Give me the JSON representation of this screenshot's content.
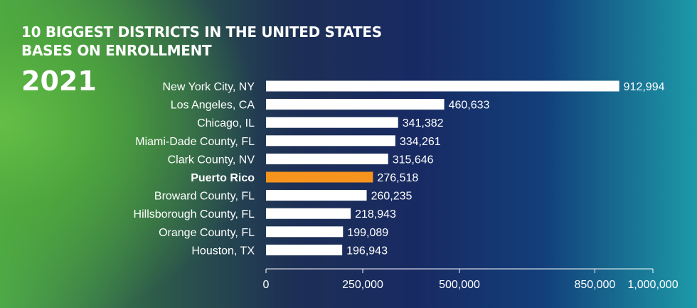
{
  "title_line1": "10 BIGGEST DISTRICTS IN THE UNITED STATES",
  "title_line2": "BASES ON ENROLLMENT",
  "year": "2021",
  "colors": {
    "bar": "#ffffff",
    "highlight": "#f7941d",
    "axis": "#ffffff"
  },
  "chart_data": {
    "type": "bar",
    "orientation": "horizontal",
    "categories": [
      "New York City, NY",
      "Los Angeles, CA",
      "Chicago, IL",
      "Miami-Dade County, FL",
      "Clark County, NV",
      "Puerto Rico",
      "Broward County, FL",
      "Hillsborough County, FL",
      "Orange County, FL",
      "Houston, TX"
    ],
    "values": [
      912994,
      460633,
      341382,
      334261,
      315646,
      276518,
      260235,
      218943,
      199089,
      196943
    ],
    "value_labels": [
      "912,994",
      "460,633",
      "341,382",
      "334,261",
      "315,646",
      "276,518",
      "260,235",
      "218,943",
      "199,089",
      "196,943"
    ],
    "highlight": "Puerto Rico",
    "xlim": [
      0,
      1000000
    ],
    "ticks": [
      0,
      250000,
      500000,
      850000,
      1000000
    ],
    "tick_labels": [
      "0",
      "250,000",
      "500,000",
      "850,000",
      "1,000,000"
    ],
    "grid": false
  }
}
